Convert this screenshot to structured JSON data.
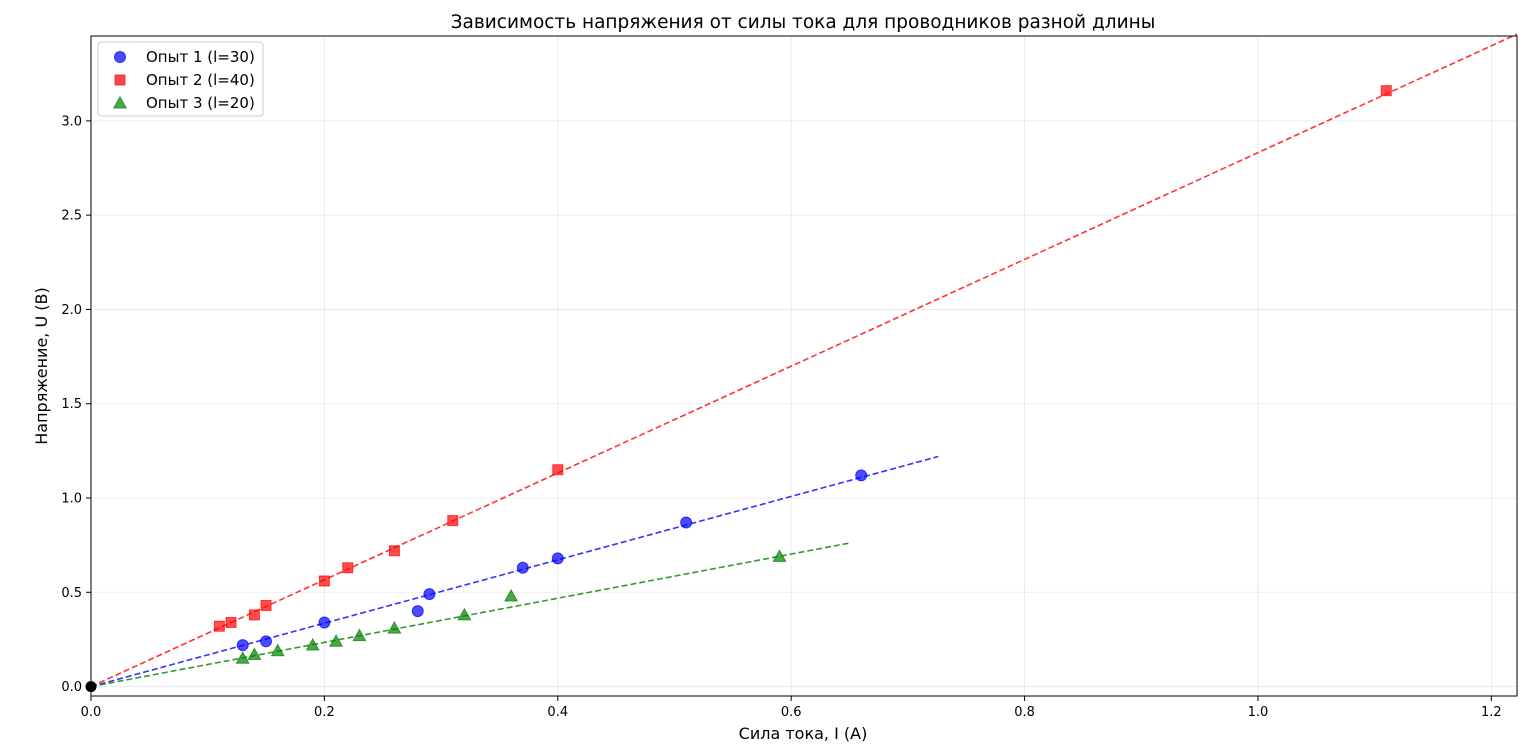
{
  "chart_data": {
    "type": "scatter",
    "title": "Зависимость напряжения от силы тока для проводников разной длины",
    "xlabel": "Сила тока, I (А)",
    "ylabel": "Напряжение, U (В)",
    "xlim": [
      0,
      1.222
    ],
    "ylim": [
      -0.05,
      3.45
    ],
    "xticks": [
      0.0,
      0.2,
      0.4,
      0.6,
      0.8,
      1.0,
      1.2
    ],
    "xtick_labels": [
      "0.0",
      "0.2",
      "0.4",
      "0.6",
      "0.8",
      "1.0",
      "1.2"
    ],
    "yticks": [
      0.0,
      0.5,
      1.0,
      1.5,
      2.0,
      2.5,
      3.0
    ],
    "ytick_labels": [
      "0.0",
      "0.5",
      "1.0",
      "1.5",
      "2.0",
      "2.5",
      "3.0"
    ],
    "grid": true,
    "legend_position": "top-left",
    "origin_point": {
      "x": 0,
      "y": 0,
      "color": "#000000"
    },
    "series": [
      {
        "name": "Опыт 1 (l=30)",
        "color": "#0000ff",
        "marker": "circle",
        "x": [
          0.13,
          0.15,
          0.2,
          0.28,
          0.29,
          0.37,
          0.4,
          0.51,
          0.66
        ],
        "y": [
          0.22,
          0.24,
          0.34,
          0.4,
          0.49,
          0.63,
          0.68,
          0.87,
          1.12
        ],
        "fit": {
          "x": [
            0,
            0.726
          ],
          "y": [
            0,
            1.22
          ]
        }
      },
      {
        "name": "Опыт 2 (l=40)",
        "color": "#ff0000",
        "marker": "square",
        "x": [
          0.11,
          0.12,
          0.14,
          0.15,
          0.2,
          0.22,
          0.26,
          0.31,
          0.4,
          1.11
        ],
        "y": [
          0.32,
          0.34,
          0.38,
          0.43,
          0.56,
          0.63,
          0.72,
          0.88,
          1.15,
          3.16
        ],
        "fit": {
          "x": [
            0,
            1.222
          ],
          "y": [
            0,
            3.46
          ]
        }
      },
      {
        "name": "Опыт 3 (l=20)",
        "color": "#008000",
        "marker": "triangle",
        "x": [
          0.13,
          0.14,
          0.16,
          0.19,
          0.21,
          0.23,
          0.26,
          0.32,
          0.36,
          0.59
        ],
        "y": [
          0.15,
          0.17,
          0.19,
          0.22,
          0.24,
          0.27,
          0.31,
          0.38,
          0.48,
          0.69
        ],
        "fit": {
          "x": [
            0,
            0.649
          ],
          "y": [
            0,
            0.76
          ]
        }
      }
    ]
  }
}
